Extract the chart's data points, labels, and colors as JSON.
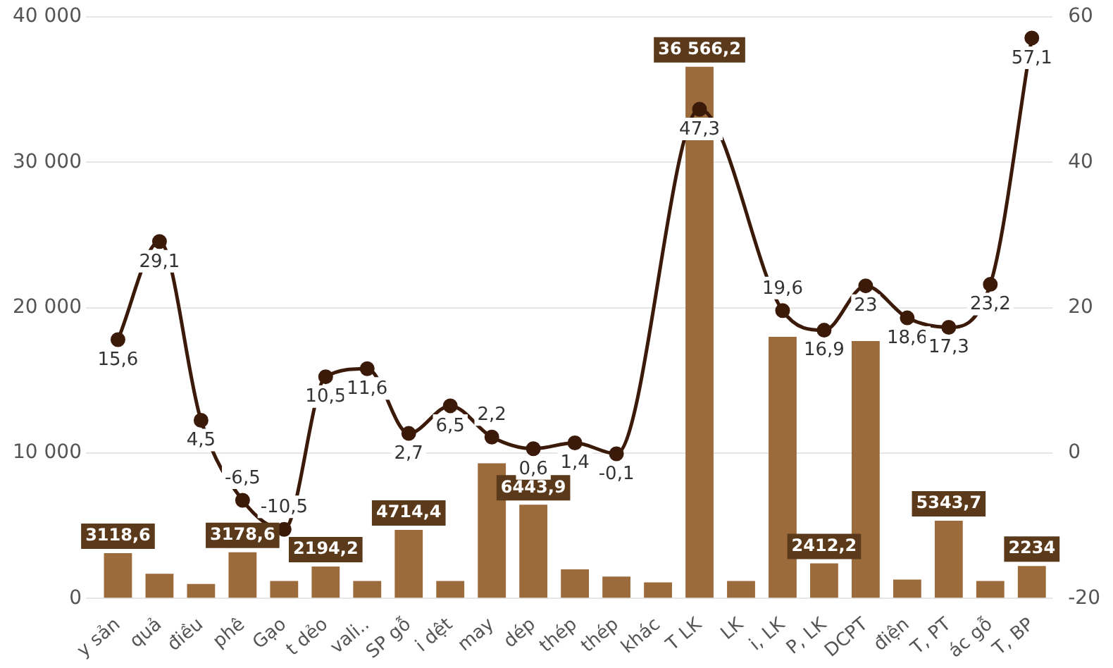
{
  "chart_data": {
    "type": "bar",
    "categories": [
      "y sản",
      "quả",
      "điều",
      "phê",
      "Gạo",
      "t dẻo",
      "vali..",
      "SP gỗ",
      "i dệt",
      "may",
      "dép",
      "thép",
      "thép",
      "khác",
      "T LK",
      "LK",
      "i, LK",
      "P, LK",
      "DCPT",
      "điện",
      "T, PT",
      "ác gỗ",
      "T, BP"
    ],
    "series": [
      {
        "color": "#9c6b3c",
        "values": [
          3118.6,
          1700,
          1000,
          3178.6,
          1200,
          2194.2,
          1200,
          4714.4,
          1200,
          9300,
          6443.9,
          2000,
          1500,
          1100,
          36566.2,
          1200,
          18000,
          2412.2,
          17700,
          1300,
          5343.7,
          1200,
          2234
        ],
        "value_labels": [
          "3118,6",
          null,
          null,
          "3178,6",
          null,
          "2194,2",
          null,
          "4714,4",
          null,
          null,
          "6443,9",
          null,
          null,
          null,
          "36 566,2",
          null,
          null,
          "2412,2",
          null,
          null,
          "5343,7",
          null,
          "2234"
        ]
      },
      {
        "type": "line",
        "axis": "y2",
        "color": "#3b1a0a",
        "values": [
          15.6,
          29.1,
          4.5,
          -6.5,
          -10.5,
          10.5,
          11.6,
          2.7,
          6.5,
          2.2,
          0.6,
          1.4,
          -0.1,
          null,
          47.3,
          null,
          19.6,
          16.9,
          23,
          18.6,
          17.3,
          23.2,
          57.1
        ],
        "value_labels": [
          "15,6",
          "29,1",
          "4,5",
          "-6,5",
          "-10,5",
          "10,5",
          "11,6",
          "2,7",
          "6,5",
          "2,2",
          "0,6",
          "1,4",
          "-0,1",
          null,
          "47,3",
          null,
          "19,6",
          "16,9",
          "23",
          "18,6",
          "17,3",
          "23,2",
          "57,1"
        ]
      }
    ],
    "ylim": [
      0,
      40000
    ],
    "yticks": [
      {
        "value": 0,
        "label": "0"
      },
      {
        "value": 10000,
        "label": "10 000"
      },
      {
        "value": 20000,
        "label": "20 000"
      },
      {
        "value": 30000,
        "label": "30 000"
      },
      {
        "value": 40000,
        "label": "40 000"
      }
    ],
    "y2lim": [
      -20,
      60
    ],
    "y2ticks": [
      -20,
      0,
      20,
      40,
      60
    ],
    "grid": "y",
    "marker": "circle",
    "line_style": "solid"
  }
}
